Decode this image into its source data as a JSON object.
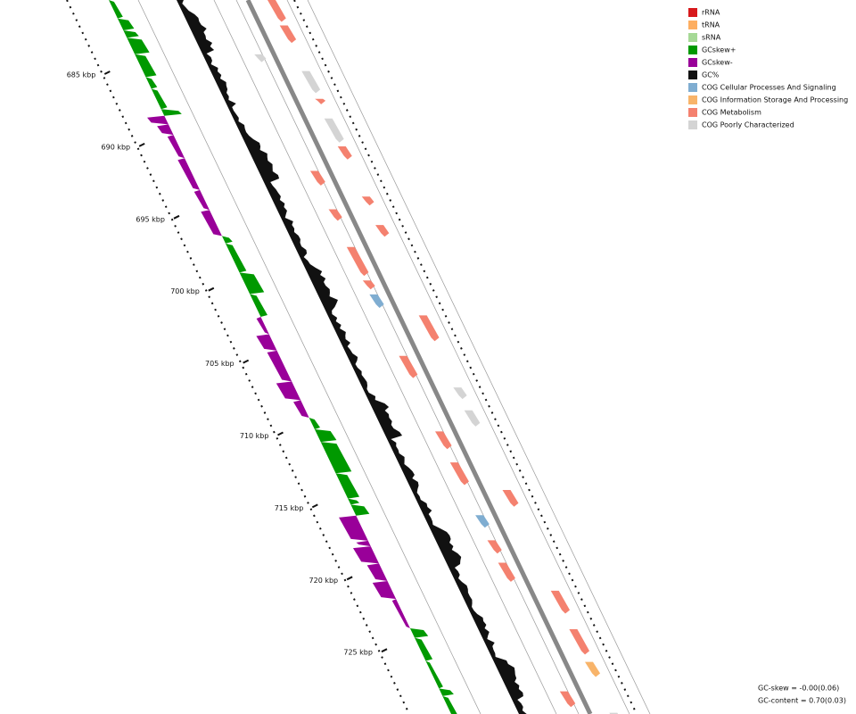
{
  "legend": {
    "items": [
      {
        "label": "rRNA",
        "color": "#d7191c"
      },
      {
        "label": "tRNA",
        "color": "#fdae61"
      },
      {
        "label": "sRNA",
        "color": "#a6d996"
      },
      {
        "label": "GCskew+",
        "color": "#009900"
      },
      {
        "label": "GCskew-",
        "color": "#990099"
      },
      {
        "label": "GC%",
        "color": "#111111"
      },
      {
        "label": "COG Cellular Processes And Signaling",
        "color": "#7fadd1"
      },
      {
        "label": "COG Information Storage And Processing",
        "color": "#f8b46a"
      },
      {
        "label": "COG Metabolism",
        "color": "#f4816f"
      },
      {
        "label": "COG Poorly Characterized",
        "color": "#d4d4d4"
      }
    ]
  },
  "scale": {
    "labels": [
      "685 kbp",
      "690 kbp",
      "695 kbp",
      "700 kbp",
      "705 kbp",
      "710 kbp",
      "715 kbp",
      "720 kbp",
      "725 kbp"
    ]
  },
  "footer": {
    "gc_skew": "GC-skew = -0.00(0.06)",
    "gc_content": "GC-content = 0.70(0.03)"
  }
}
